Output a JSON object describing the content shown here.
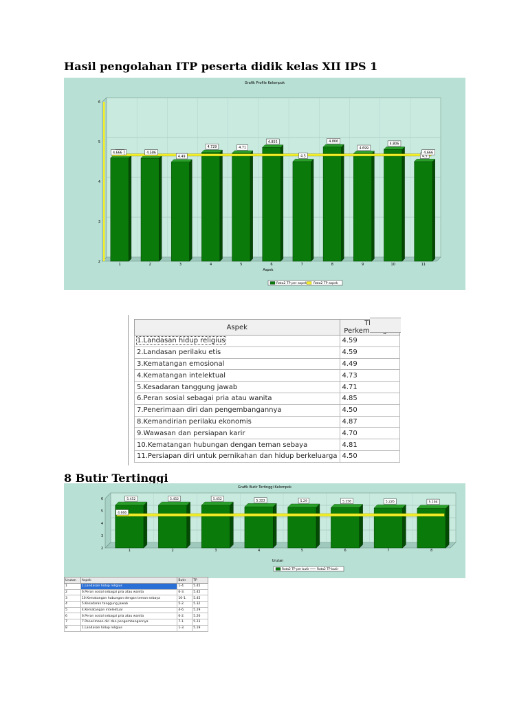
{
  "headings": {
    "main": "Hasil pengolahan ITP peserta didik kelas XII IPS 1",
    "butir": "8 Butir Tertinggi"
  },
  "chart_data": [
    {
      "type": "bar",
      "title": "Grafik Profile Kelompok",
      "xlabel": "Aspek",
      "ylabel": "",
      "ylim": [
        2,
        6
      ],
      "yticks": [
        "2",
        "3",
        "4",
        "5",
        "6"
      ],
      "categories": [
        "1",
        "2",
        "3",
        "4",
        "5",
        "6",
        "7",
        "8",
        "9",
        "10",
        "11"
      ],
      "series": [
        {
          "name": "Rata2 TP per aspek",
          "values": [
            4.59,
            4.586,
            4.49,
            4.729,
            4.71,
            4.855,
            4.5,
            4.866,
            4.699,
            4.806,
            4.5
          ]
        },
        {
          "name": "Rata2 TP aspek",
          "values": [
            4.666,
            4.666,
            4.666,
            4.666,
            4.666,
            4.666,
            4.666,
            4.666,
            4.666,
            4.666,
            4.666
          ]
        }
      ],
      "data_labels": [
        "4.59",
        "4.586",
        "4.49",
        "4.729",
        "4.71",
        "4.855",
        "4.5",
        "4.866",
        "4.699",
        "4.806",
        "4.5"
      ],
      "line_labels": [
        "4.666",
        "4.666"
      ],
      "legend": "bottom",
      "colors": {
        "bar": "#0a7a0a",
        "line": "#f2ee2a",
        "background": "#b9e0d4"
      }
    },
    {
      "type": "bar",
      "title": "Grafik Butir Tertinggi Kelompok",
      "xlabel": "Urutan",
      "ylabel": "",
      "ylim": [
        2,
        6
      ],
      "yticks": [
        "2",
        "3",
        "4",
        "5",
        "6"
      ],
      "categories": [
        "1",
        "2",
        "3",
        "4",
        "5",
        "6",
        "7",
        "8"
      ],
      "series": [
        {
          "name": "Rata2 TP per butir",
          "values": [
            5.452,
            5.452,
            5.452,
            5.323,
            5.29,
            5.258,
            5.226,
            5.194
          ]
        },
        {
          "name": "Rata2 TP butir",
          "values": [
            4.666,
            4.666,
            4.666,
            4.666,
            4.666,
            4.666,
            4.666,
            4.666
          ]
        }
      ],
      "data_labels": [
        "5.452",
        "5.452",
        "5.452",
        "5.323",
        "5.29",
        "5.258",
        "5.226",
        "5.194"
      ],
      "line_labels": [
        "4.666"
      ],
      "legend": "bottom",
      "colors": {
        "bar": "#0a7a0a",
        "line": "#f2ee2a",
        "background": "#b9e0d4"
      }
    }
  ],
  "table1": {
    "headers": [
      "Aspek",
      "Tk. Perkembangan"
    ],
    "rows": [
      {
        "aspek": "1.Landasan hidup religius",
        "tk": "4.59"
      },
      {
        "aspek": "2.Landasan perilaku etis",
        "tk": "4.59"
      },
      {
        "aspek": "3.Kematangan emosional",
        "tk": "4.49"
      },
      {
        "aspek": "4.Kematangan intelektual",
        "tk": "4.73"
      },
      {
        "aspek": "5.Kesadaran tanggung jawab",
        "tk": "4.71"
      },
      {
        "aspek": "6.Peran sosial sebagai pria atau wanita",
        "tk": "4.85"
      },
      {
        "aspek": "7.Penerimaan diri dan pengembangannya",
        "tk": "4.50"
      },
      {
        "aspek": "8.Kemandirian perilaku ekonomis",
        "tk": "4.87"
      },
      {
        "aspek": "9.Wawasan dan persiapan karir",
        "tk": "4.70"
      },
      {
        "aspek": "10.Kematangan hubungan dengan teman sebaya",
        "tk": "4.81"
      },
      {
        "aspek": "11.Persiapan diri untuk pernikahan dan hidup berkeluarga",
        "tk": "4.50"
      }
    ]
  },
  "table2": {
    "headers": [
      "Urutan",
      "Aspek",
      "Butir",
      "TP"
    ],
    "rows": [
      {
        "urutan": "1",
        "aspek": "1.Landasan hidup religius",
        "butir": "1-4.",
        "tp": "5.45"
      },
      {
        "urutan": "2",
        "aspek": "6.Peran sosial sebagai pria atau wanita",
        "butir": "6-3.",
        "tp": "5.45"
      },
      {
        "urutan": "3",
        "aspek": "10.Kematangan hubungan dengan teman sebaya",
        "butir": "10-1.",
        "tp": "5.45"
      },
      {
        "urutan": "4",
        "aspek": "5.Kesadaran tanggung jawab",
        "butir": "5-2.",
        "tp": "5.32"
      },
      {
        "urutan": "5",
        "aspek": "4.Kematangan intelektual",
        "butir": "4-6.",
        "tp": "5.29"
      },
      {
        "urutan": "6",
        "aspek": "6.Peran sosial sebagai pria atau wanita",
        "butir": "6-2.",
        "tp": "5.26"
      },
      {
        "urutan": "7",
        "aspek": "7.Penerimaan diri dan pengembangannya",
        "butir": "7-1.",
        "tp": "5.23"
      },
      {
        "urutan": "8",
        "aspek": "1.Landasan hidup religius",
        "butir": "1-3.",
        "tp": "5.19"
      }
    ]
  }
}
